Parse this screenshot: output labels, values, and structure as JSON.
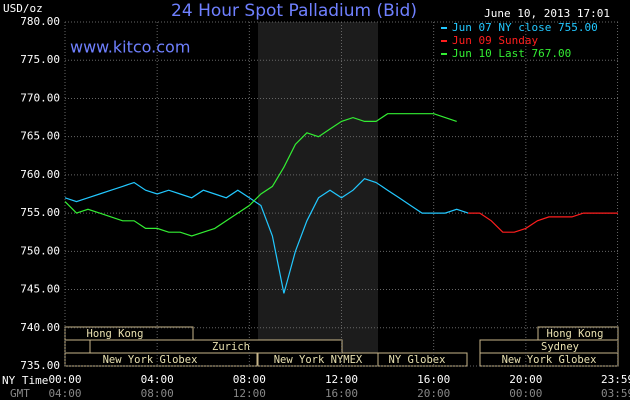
{
  "chart_data": {
    "type": "line",
    "title": "24 Hour Spot Palladium (Bid)",
    "subtitle": "June 10, 2013 17:01",
    "watermark": "www.kitco.com",
    "y_label": "USD/oz",
    "x_label": "NY Time",
    "x2_label": "GMT",
    "xlim": [
      0,
      24
    ],
    "xticks": [
      {
        "value": 0,
        "label": "00:00"
      },
      {
        "value": 4,
        "label": "04:00"
      },
      {
        "value": 8,
        "label": "08:00"
      },
      {
        "value": 12,
        "label": "12:00"
      },
      {
        "value": 16,
        "label": "16:00"
      },
      {
        "value": 20,
        "label": "20:00"
      },
      {
        "value": 23.98,
        "label": "23:59"
      }
    ],
    "gmt_tick_labels": [
      "04:00",
      "08:00",
      "12:00",
      "16:00",
      "20:00",
      "00:00",
      "03:59"
    ],
    "ylim": [
      735,
      780
    ],
    "yticks": [
      {
        "value": 735,
        "label": "735.00"
      },
      {
        "value": 740,
        "label": "740.00"
      },
      {
        "value": 745,
        "label": "745.00"
      },
      {
        "value": 750,
        "label": "750.00"
      },
      {
        "value": 755,
        "label": "755.00"
      },
      {
        "value": 760,
        "label": "760.00"
      },
      {
        "value": 765,
        "label": "765.00"
      },
      {
        "value": 770,
        "label": "770.00"
      },
      {
        "value": 775,
        "label": "775.00"
      },
      {
        "value": 780,
        "label": "780.00"
      }
    ],
    "grid": true,
    "sessions": [
      "Hong Kong",
      "Hong Kong",
      "Zurich",
      "Sydney",
      "New York Globex",
      "New York NYMEX",
      "NY Globex",
      "New York Globex"
    ],
    "series": [
      {
        "name": "Jun 07 NY close 755.00",
        "color": "#22c8ff",
        "x": [
          0,
          0.5,
          1,
          1.5,
          2,
          2.5,
          3,
          3.5,
          4,
          4.5,
          5,
          5.5,
          6,
          6.5,
          7,
          7.5,
          8,
          8.5,
          9,
          9.5,
          10,
          10.5,
          11,
          11.5,
          12,
          12.5,
          13,
          13.5,
          14,
          14.5,
          15,
          15.5,
          16,
          16.5,
          17,
          17.5
        ],
        "values": [
          757,
          756.5,
          757,
          757.5,
          758,
          758.5,
          759,
          758,
          757.5,
          758,
          757.5,
          757,
          758,
          757.5,
          757,
          758,
          757,
          756,
          752,
          744.5,
          750,
          754,
          757,
          758,
          757,
          758,
          759.5,
          759,
          758,
          757,
          756,
          755,
          755,
          755,
          755.5,
          755
        ]
      },
      {
        "name": "Jun 09 Sunday",
        "color": "#ff1e1e",
        "x": [
          17.5,
          18,
          18.5,
          19,
          19.5,
          20,
          20.5,
          21,
          21.5,
          22,
          22.5,
          23,
          23.5,
          24
        ],
        "values": [
          755,
          755,
          754,
          752.5,
          752.5,
          753,
          754,
          754.5,
          754.5,
          754.5,
          755,
          755,
          755,
          755
        ]
      },
      {
        "name": "Jun 10 Last 767.00",
        "color": "#33ee33",
        "x": [
          0,
          0.5,
          1,
          1.5,
          2,
          2.5,
          3,
          3.5,
          4,
          4.5,
          5,
          5.5,
          6,
          6.5,
          7,
          7.5,
          8,
          8.5,
          9,
          9.5,
          10,
          10.5,
          11,
          11.5,
          12,
          12.5,
          13,
          13.5,
          14,
          14.5,
          15,
          15.5,
          16,
          16.5,
          17
        ],
        "values": [
          756.5,
          755,
          755.5,
          755,
          754.5,
          754,
          754,
          753,
          753,
          752.5,
          752.5,
          752,
          752.5,
          753,
          754,
          755,
          756,
          757.5,
          758.5,
          761,
          764,
          765.5,
          765,
          766,
          767,
          767.5,
          767,
          767,
          768,
          768,
          768,
          768,
          768,
          767.5,
          767
        ]
      }
    ]
  }
}
